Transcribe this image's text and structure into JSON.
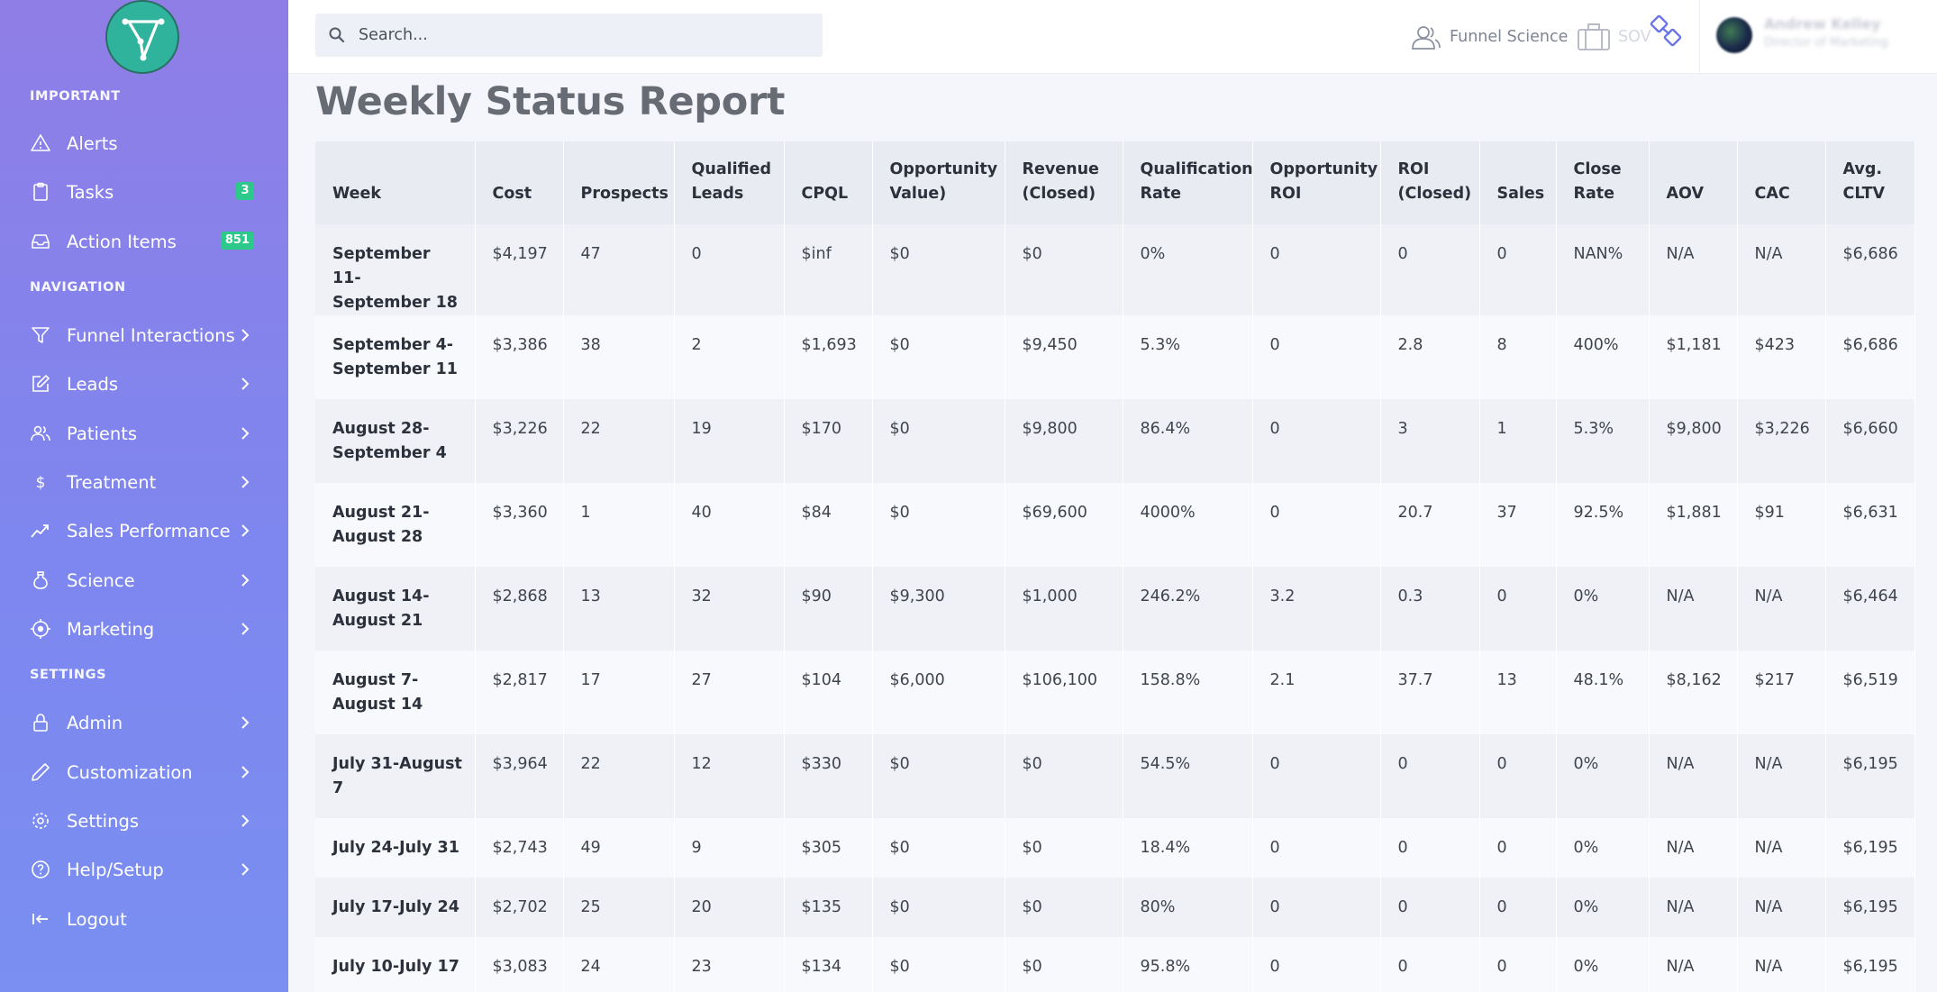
{
  "sidebar": {
    "sections": {
      "important": "IMPORTANT",
      "navigation": "NAVIGATION",
      "settings": "SETTINGS"
    },
    "items": {
      "alerts": {
        "label": "Alerts",
        "icon": "warning-icon"
      },
      "tasks": {
        "label": "Tasks",
        "icon": "clipboard-icon",
        "badge": "3"
      },
      "action_items": {
        "label": "Action Items",
        "icon": "inbox-icon",
        "badge": "851"
      },
      "funnel_interactions": {
        "label": "Funnel Interactions",
        "icon": "funnel-icon"
      },
      "leads": {
        "label": "Leads",
        "icon": "edit-icon"
      },
      "patients": {
        "label": "Patients",
        "icon": "users-icon"
      },
      "treatment": {
        "label": "Treatment",
        "icon": "dollar-icon"
      },
      "sales_performance": {
        "label": "Sales Performance",
        "icon": "trend-icon"
      },
      "science": {
        "label": "Science",
        "icon": "flask-icon"
      },
      "marketing": {
        "label": "Marketing",
        "icon": "target-icon"
      },
      "admin": {
        "label": "Admin",
        "icon": "lock-icon"
      },
      "customization": {
        "label": "Customization",
        "icon": "pencil-icon"
      },
      "settings": {
        "label": "Settings",
        "icon": "gear-icon"
      },
      "help_setup": {
        "label": "Help/Setup",
        "icon": "help-icon"
      },
      "logout": {
        "label": "Logout",
        "icon": "logout-icon"
      }
    },
    "badge_color": "#2dc98a"
  },
  "topbar": {
    "search_placeholder": "Search...",
    "funnel_science": "Funnel Science",
    "sov": "SOV",
    "user_name": "Andrew Kelley",
    "user_role": "Director of Marketing"
  },
  "main": {
    "title": "Weekly Status Report",
    "columns": [
      [
        "Week"
      ],
      [
        "Cost"
      ],
      [
        "Prospects"
      ],
      [
        "Qualified",
        "Leads"
      ],
      [
        "CPQL"
      ],
      [
        "Opportunity",
        "Value)"
      ],
      [
        "Revenue",
        "(Closed)"
      ],
      [
        "Qualification",
        "Rate"
      ],
      [
        "Opportunity",
        "ROI"
      ],
      [
        "ROI",
        "(Closed)"
      ],
      [
        "Sales"
      ],
      [
        "Close",
        "Rate"
      ],
      [
        "AOV"
      ],
      [
        "CAC"
      ],
      [
        "Avg.",
        "CLTV"
      ]
    ],
    "rows": [
      [
        [
          "September 11-",
          "September 18"
        ],
        "$4,197",
        "47",
        "0",
        "$inf",
        "$0",
        "$0",
        "0%",
        "0",
        "0",
        "0",
        "NAN%",
        "N/A",
        "N/A",
        "$6,686"
      ],
      [
        [
          "September 4-",
          "September 11"
        ],
        "$3,386",
        "38",
        "2",
        "$1,693",
        "$0",
        "$9,450",
        "5.3%",
        "0",
        "2.8",
        "8",
        "400%",
        "$1,181",
        "$423",
        "$6,686"
      ],
      [
        [
          "August 28-",
          "September 4"
        ],
        "$3,226",
        "22",
        "19",
        "$170",
        "$0",
        "$9,800",
        "86.4%",
        "0",
        "3",
        "1",
        "5.3%",
        "$9,800",
        "$3,226",
        "$6,660"
      ],
      [
        [
          "August 21-",
          "August 28"
        ],
        "$3,360",
        "1",
        "40",
        "$84",
        "$0",
        "$69,600",
        "4000%",
        "0",
        "20.7",
        "37",
        "92.5%",
        "$1,881",
        "$91",
        "$6,631"
      ],
      [
        [
          "August 14-",
          "August 21"
        ],
        "$2,868",
        "13",
        "32",
        "$90",
        "$9,300",
        "$1,000",
        "246.2%",
        "3.2",
        "0.3",
        "0",
        "0%",
        "N/A",
        "N/A",
        "$6,464"
      ],
      [
        [
          "August 7-",
          "August 14"
        ],
        "$2,817",
        "17",
        "27",
        "$104",
        "$6,000",
        "$106,100",
        "158.8%",
        "2.1",
        "37.7",
        "13",
        "48.1%",
        "$8,162",
        "$217",
        "$6,519"
      ],
      [
        [
          "July 31-August",
          "7"
        ],
        "$3,964",
        "22",
        "12",
        "$330",
        "$0",
        "$0",
        "54.5%",
        "0",
        "0",
        "0",
        "0%",
        "N/A",
        "N/A",
        "$6,195"
      ],
      [
        [
          "July 24-July 31"
        ],
        "$2,743",
        "49",
        "9",
        "$305",
        "$0",
        "$0",
        "18.4%",
        "0",
        "0",
        "0",
        "0%",
        "N/A",
        "N/A",
        "$6,195"
      ],
      [
        [
          "July 17-July 24"
        ],
        "$2,702",
        "25",
        "20",
        "$135",
        "$0",
        "$0",
        "80%",
        "0",
        "0",
        "0",
        "0%",
        "N/A",
        "N/A",
        "$6,195"
      ],
      [
        [
          "July 10-July 17"
        ],
        "$3,083",
        "24",
        "23",
        "$134",
        "$0",
        "$0",
        "95.8%",
        "0",
        "0",
        "0",
        "0%",
        "N/A",
        "N/A",
        "$6,195"
      ]
    ]
  }
}
